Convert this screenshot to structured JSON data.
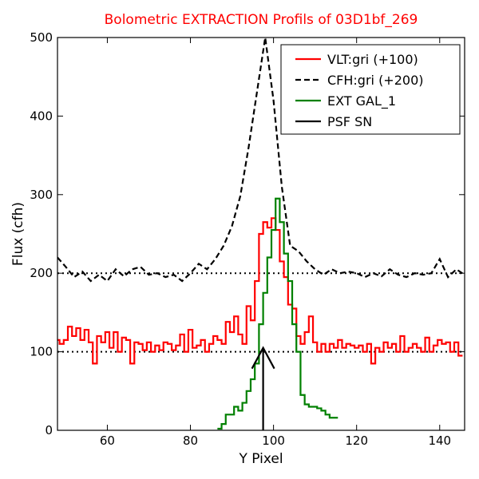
{
  "chart_data": {
    "type": "line",
    "title": "Bolometric EXTRACTION Profils of 03D1bf_269",
    "title_color": "#ff0000",
    "xlabel": "Y Pixel",
    "ylabel": "Flux (cfh)",
    "xlim": [
      48,
      146
    ],
    "ylim": [
      0,
      500
    ],
    "xticks": [
      60,
      80,
      100,
      120,
      140
    ],
    "yticks": [
      0,
      100,
      200,
      300,
      400,
      500
    ],
    "grid": false,
    "legend_position": "top-right",
    "reference_lines": [
      {
        "y": 100,
        "style": "dotted",
        "color": "#000000"
      },
      {
        "y": 200,
        "style": "dotted",
        "color": "#000000"
      }
    ],
    "series": [
      {
        "name": "VLT:gri (+100)",
        "color": "#ff0000",
        "style": "steps",
        "x": [
          48,
          49,
          50,
          51,
          52,
          53,
          54,
          55,
          56,
          57,
          58,
          59,
          60,
          61,
          62,
          63,
          64,
          65,
          66,
          67,
          68,
          69,
          70,
          71,
          72,
          73,
          74,
          75,
          76,
          77,
          78,
          79,
          80,
          81,
          82,
          83,
          84,
          85,
          86,
          87,
          88,
          89,
          90,
          91,
          92,
          93,
          94,
          95,
          96,
          97,
          98,
          99,
          100,
          101,
          102,
          103,
          104,
          105,
          106,
          107,
          108,
          109,
          110,
          111,
          112,
          113,
          114,
          115,
          116,
          117,
          118,
          119,
          120,
          121,
          122,
          123,
          124,
          125,
          126,
          127,
          128,
          129,
          130,
          131,
          132,
          133,
          134,
          135,
          136,
          137,
          138,
          139,
          140,
          141,
          142,
          143,
          144,
          145
        ],
        "y": [
          115,
          110,
          115,
          132,
          120,
          130,
          115,
          128,
          112,
          85,
          120,
          112,
          125,
          105,
          125,
          100,
          118,
          115,
          85,
          112,
          110,
          102,
          112,
          100,
          108,
          102,
          112,
          110,
          102,
          108,
          122,
          100,
          128,
          105,
          108,
          115,
          100,
          110,
          120,
          115,
          110,
          138,
          125,
          145,
          122,
          110,
          158,
          140,
          190,
          250,
          265,
          258,
          270,
          255,
          215,
          195,
          160,
          155,
          120,
          110,
          125,
          145,
          112,
          100,
          110,
          100,
          110,
          105,
          115,
          105,
          110,
          108,
          105,
          108,
          100,
          110,
          85,
          105,
          100,
          112,
          105,
          110,
          100,
          120,
          100,
          105,
          110,
          105,
          100,
          118,
          100,
          108,
          115,
          110,
          112,
          100,
          112,
          95
        ]
      },
      {
        "name": "CFH:gri (+200)",
        "color": "#000000",
        "style": "dashed",
        "x": [
          48,
          50,
          52,
          54,
          56,
          58,
          60,
          62,
          64,
          66,
          68,
          70,
          72,
          74,
          76,
          78,
          80,
          82,
          84,
          86,
          88,
          90,
          92,
          94,
          96,
          98,
          100,
          102,
          104,
          106,
          108,
          110,
          112,
          114,
          116,
          118,
          120,
          122,
          124,
          126,
          128,
          130,
          132,
          134,
          136,
          138,
          140,
          142,
          144,
          146
        ],
        "y": [
          220,
          208,
          195,
          202,
          190,
          198,
          190,
          205,
          196,
          205,
          208,
          198,
          200,
          195,
          198,
          190,
          200,
          212,
          205,
          218,
          235,
          260,
          298,
          360,
          430,
          500,
          420,
          310,
          235,
          228,
          215,
          205,
          198,
          205,
          200,
          202,
          200,
          195,
          200,
          196,
          205,
          198,
          195,
          200,
          198,
          200,
          218,
          195,
          205,
          198
        ]
      },
      {
        "name": "EXT GAL_1",
        "color": "#008000",
        "style": "steps",
        "x": [
          87,
          88,
          89,
          90,
          91,
          92,
          93,
          94,
          95,
          96,
          97,
          98,
          99,
          100,
          101,
          102,
          103,
          104,
          105,
          106,
          107,
          108,
          109,
          110,
          111,
          112,
          113,
          114,
          115
        ],
        "y": [
          2,
          8,
          20,
          20,
          30,
          25,
          35,
          50,
          65,
          85,
          135,
          175,
          220,
          255,
          295,
          265,
          225,
          190,
          135,
          100,
          45,
          33,
          30,
          30,
          28,
          25,
          20,
          16,
          16
        ]
      },
      {
        "name": "PSF SN",
        "color": "#000000",
        "style": "arrow",
        "x": [
          97.5,
          97.5
        ],
        "y": [
          0,
          105
        ]
      }
    ]
  }
}
